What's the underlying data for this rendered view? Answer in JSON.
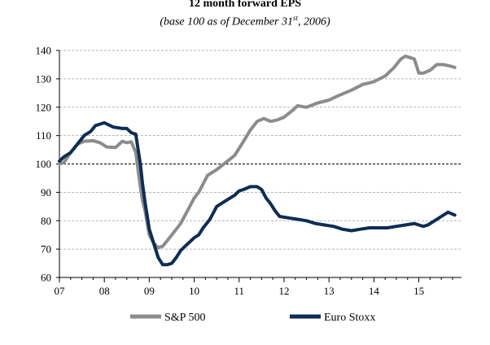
{
  "chart_data": {
    "type": "line",
    "title": "12 month forward EPS",
    "subtitle_pre": "(base 100 as of December 31",
    "subtitle_sup": "st",
    "subtitle_post": ", 2006)",
    "xlabel": "",
    "ylabel": "",
    "ylim": [
      60,
      140
    ],
    "xlim": [
      2007,
      2015.95
    ],
    "yticks": [
      60,
      70,
      80,
      90,
      100,
      110,
      120,
      130,
      140
    ],
    "xtick_labels": [
      "07",
      "08",
      "09",
      "10",
      "11",
      "12",
      "13",
      "14",
      "15"
    ],
    "xtick_values": [
      2007,
      2008,
      2009,
      2010,
      2011,
      2012,
      2013,
      2014,
      2015
    ],
    "grid": "horizontal dashed",
    "reference_line": 100,
    "legend_position": "bottom",
    "colors": {
      "sp500": "#8c8c8c",
      "eurostoxx": "#0d2d55",
      "grid": "#a0a0a0",
      "reference": "#000000"
    },
    "series": [
      {
        "name": "S&P 500",
        "key": "sp500",
        "x": [
          2007.0,
          2007.1,
          2007.25,
          2007.4,
          2007.55,
          2007.75,
          2007.9,
          2008.05,
          2008.25,
          2008.4,
          2008.5,
          2008.6,
          2008.7,
          2008.8,
          2008.85,
          2008.9,
          2009.0,
          2009.1,
          2009.2,
          2009.3,
          2009.4,
          2009.5,
          2009.6,
          2009.7,
          2009.8,
          2009.9,
          2010.0,
          2010.1,
          2010.2,
          2010.3,
          2010.5,
          2010.7,
          2010.9,
          2011.0,
          2011.1,
          2011.25,
          2011.4,
          2011.55,
          2011.7,
          2011.85,
          2012.0,
          2012.2,
          2012.3,
          2012.5,
          2012.75,
          2013.0,
          2013.2,
          2013.5,
          2013.75,
          2014.0,
          2014.25,
          2014.45,
          2014.6,
          2014.7,
          2014.8,
          2014.9,
          2015.0,
          2015.1,
          2015.25,
          2015.4,
          2015.55,
          2015.7,
          2015.8
        ],
        "values": [
          100,
          100.5,
          104,
          107,
          108,
          108.2,
          107.5,
          106,
          105.8,
          108,
          107.5,
          107.8,
          104,
          92,
          87,
          84,
          75,
          72,
          70.5,
          71,
          73,
          75,
          77,
          79,
          82,
          85,
          88,
          90,
          93,
          96,
          98,
          100.5,
          103,
          105.5,
          108,
          112,
          115,
          116,
          115,
          115.5,
          116.5,
          119,
          120.5,
          120,
          121.5,
          122.5,
          124,
          126,
          128,
          129,
          131,
          134,
          137,
          138,
          137.5,
          137,
          132,
          132,
          133,
          135,
          135,
          134.5,
          134
        ]
      },
      {
        "name": "Euro Stoxx",
        "key": "eurostoxx",
        "x": [
          2007.0,
          2007.1,
          2007.25,
          2007.4,
          2007.55,
          2007.7,
          2007.8,
          2008.0,
          2008.2,
          2008.4,
          2008.5,
          2008.6,
          2008.7,
          2008.8,
          2008.85,
          2008.9,
          2009.0,
          2009.1,
          2009.2,
          2009.3,
          2009.4,
          2009.5,
          2009.6,
          2009.7,
          2009.8,
          2009.9,
          2010.0,
          2010.1,
          2010.2,
          2010.35,
          2010.5,
          2010.7,
          2010.9,
          2011.0,
          2011.1,
          2011.25,
          2011.4,
          2011.5,
          2011.6,
          2011.7,
          2011.8,
          2011.9,
          2012.1,
          2012.3,
          2012.5,
          2012.7,
          2012.9,
          2013.1,
          2013.3,
          2013.5,
          2013.7,
          2013.9,
          2014.1,
          2014.3,
          2014.5,
          2014.7,
          2014.9,
          2015.0,
          2015.1,
          2015.2,
          2015.35,
          2015.5,
          2015.65,
          2015.8
        ],
        "values": [
          101,
          102.5,
          104,
          107,
          110,
          111.5,
          113.5,
          114.5,
          113,
          112.5,
          112.5,
          111,
          110.5,
          100,
          93,
          87,
          77,
          72,
          67,
          64.5,
          64.5,
          65,
          67,
          69.5,
          71,
          72.5,
          74,
          75,
          77.5,
          80.5,
          85,
          87,
          89,
          90.5,
          91,
          92,
          92,
          91,
          88,
          86,
          83.5,
          81.5,
          81,
          80.5,
          80,
          79,
          78.5,
          78,
          77,
          76.5,
          77,
          77.5,
          77.5,
          77.5,
          78,
          78.5,
          79,
          78.5,
          78,
          78.5,
          80,
          81.5,
          83,
          82
        ]
      }
    ]
  }
}
